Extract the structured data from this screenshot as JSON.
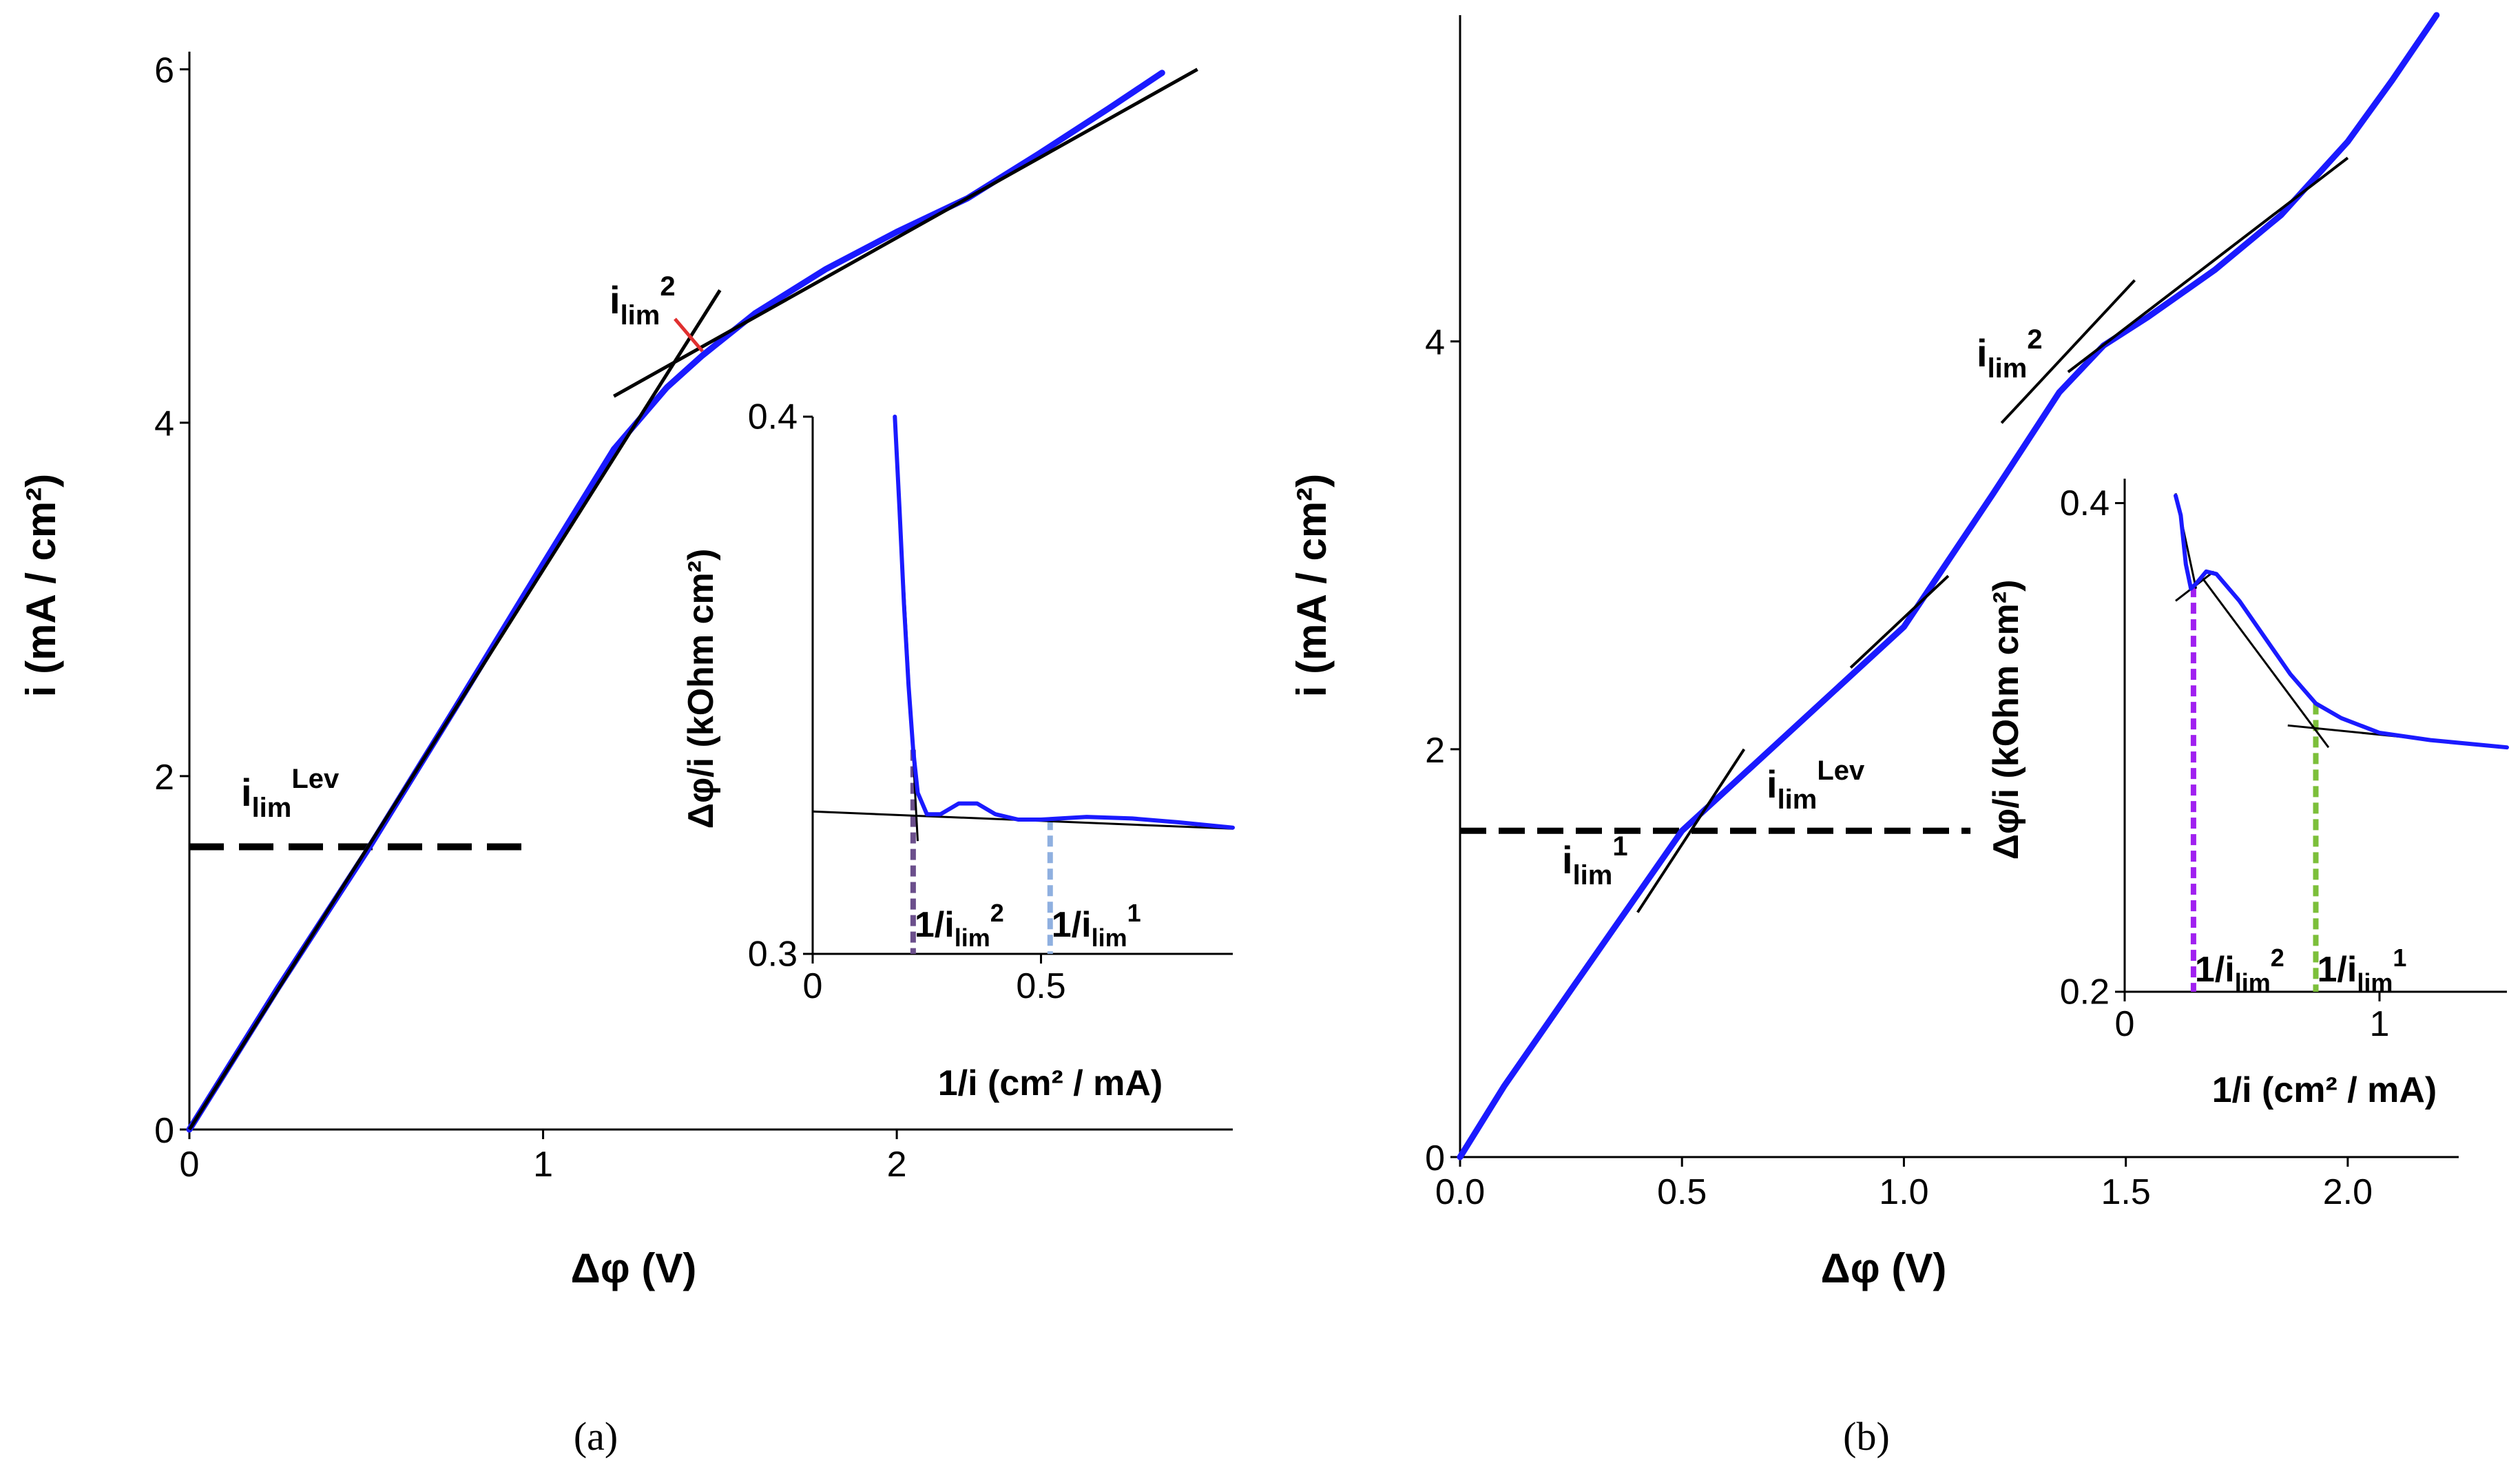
{
  "figure": {
    "caption_a": "(a)",
    "caption_b": "(b)"
  },
  "chart_data": [
    {
      "id": "panel-a-main",
      "type": "line",
      "xlabel": "Δφ (V)",
      "ylabel": "i (mA / cm²)",
      "xlim": [
        0,
        2.95
      ],
      "ylim": [
        0,
        6.1
      ],
      "xticks": [
        "0",
        "1",
        "2"
      ],
      "yticks": [
        "0",
        "2",
        "4",
        "6"
      ],
      "series": [
        {
          "name": "measured",
          "color": "#1a1aff",
          "x": [
            0,
            0.25,
            0.5,
            0.75,
            1.0,
            1.2,
            1.35,
            1.45,
            1.6,
            1.8,
            2.0,
            2.2,
            2.4,
            2.6,
            2.75
          ],
          "y": [
            0,
            0.8,
            1.57,
            2.38,
            3.2,
            3.85,
            4.2,
            4.38,
            4.62,
            4.87,
            5.08,
            5.27,
            5.52,
            5.78,
            5.98
          ]
        }
      ],
      "fit_lines": [
        {
          "x": [
            0,
            1.5
          ],
          "y": [
            0,
            4.75
          ]
        },
        {
          "x": [
            1.2,
            2.85
          ],
          "y": [
            4.15,
            6.0
          ]
        }
      ],
      "limit_lines": [
        {
          "y": 1.6,
          "x": [
            0,
            0.95
          ],
          "dashed": true
        }
      ],
      "annotations": {
        "i_lim_lev": {
          "base": "i",
          "sub": "lim",
          "sup": "Lev"
        },
        "i_lim_2": {
          "base": "i",
          "sub": "lim",
          "sup": "2"
        }
      },
      "inset": {
        "xlabel": "1/i (cm² / mA)",
        "ylabel": "Δφ/i (kOhm cm²)",
        "xlim": [
          0,
          0.92
        ],
        "ylim": [
          0.3,
          0.4
        ],
        "xticks": [
          "0",
          "0.5"
        ],
        "yticks": [
          "0.3",
          "0.4"
        ],
        "series": [
          {
            "name": "measured",
            "color": "#1a1aff",
            "x": [
              0.18,
              0.19,
              0.2,
              0.21,
              0.22,
              0.23,
              0.25,
              0.28,
              0.32,
              0.36,
              0.4,
              0.45,
              0.5,
              0.6,
              0.7,
              0.8,
              0.92
            ],
            "y": [
              0.4,
              0.383,
              0.365,
              0.35,
              0.338,
              0.33,
              0.326,
              0.326,
              0.328,
              0.328,
              0.326,
              0.325,
              0.325,
              0.3255,
              0.3252,
              0.3245,
              0.3235
            ]
          }
        ],
        "fit_lines": [
          {
            "x": [
              0.18,
              0.23
            ],
            "y": [
              0.4,
              0.321
            ]
          },
          {
            "x": [
              0.0,
              0.92
            ],
            "y": [
              0.3265,
              0.3233
            ]
          }
        ],
        "markers": [
          {
            "x": 0.22,
            "color": "#6b4f8c",
            "label": {
              "pre": "1/i",
              "sub": "lim",
              "sup": "2"
            }
          },
          {
            "x": 0.52,
            "color": "#8fb0e0",
            "label": {
              "pre": "1/i",
              "sub": "lim",
              "sup": "1"
            }
          }
        ]
      }
    },
    {
      "id": "panel-b-main",
      "type": "line",
      "xlabel": "Δφ (V)",
      "ylabel": "i (mA / cm²)",
      "xlim": [
        0,
        2.25
      ],
      "ylim": [
        0,
        5.6
      ],
      "xticks": [
        "0.0",
        "0.5",
        "1.0",
        "1.5",
        "2.0"
      ],
      "yticks": [
        "0",
        "2",
        "4"
      ],
      "series": [
        {
          "name": "measured",
          "color": "#1a1aff",
          "x": [
            0,
            0.1,
            0.25,
            0.5,
            0.75,
            1.0,
            1.2,
            1.35,
            1.45,
            1.55,
            1.7,
            1.85,
            2.0,
            2.1,
            2.2
          ],
          "y": [
            0,
            0.35,
            0.82,
            1.6,
            2.1,
            2.6,
            3.25,
            3.75,
            3.98,
            4.12,
            4.35,
            4.62,
            4.98,
            5.28,
            5.6
          ]
        }
      ],
      "fit_lines": [
        {
          "x": [
            0.4,
            0.64
          ],
          "y": [
            1.2,
            2.0
          ]
        },
        {
          "x": [
            0.88,
            1.1
          ],
          "y": [
            2.4,
            2.85
          ]
        },
        {
          "x": [
            1.22,
            1.52
          ],
          "y": [
            3.6,
            4.3
          ]
        },
        {
          "x": [
            1.37,
            2.0
          ],
          "y": [
            3.85,
            4.9
          ]
        }
      ],
      "limit_lines": [
        {
          "y": 1.6,
          "x": [
            0,
            1.15
          ],
          "dashed": true
        }
      ],
      "annotations": {
        "i_lim_1": {
          "base": "i",
          "sub": "lim",
          "sup": "1"
        },
        "i_lim_lev": {
          "base": "i",
          "sub": "lim",
          "sup": "Lev"
        },
        "i_lim_2": {
          "base": "i",
          "sub": "lim",
          "sup": "2"
        }
      },
      "inset": {
        "xlabel": "1/i (cm² / mA)",
        "ylabel": "Δφ/i (kOhm cm²)",
        "xlim": [
          0,
          1.5
        ],
        "ylim": [
          0.2,
          0.41
        ],
        "xticks": [
          "0",
          "1"
        ],
        "yticks": [
          "0.2",
          "0.4"
        ],
        "series": [
          {
            "name": "measured",
            "color": "#1a1aff",
            "x": [
              0.2,
              0.22,
              0.24,
              0.26,
              0.28,
              0.32,
              0.36,
              0.45,
              0.55,
              0.65,
              0.75,
              0.85,
              1.0,
              1.2,
              1.5
            ],
            "y": [
              0.403,
              0.395,
              0.375,
              0.365,
              0.367,
              0.372,
              0.371,
              0.36,
              0.345,
              0.33,
              0.318,
              0.312,
              0.306,
              0.303,
              0.3
            ]
          }
        ],
        "fit_lines": [
          {
            "x": [
              0.2,
              0.28
            ],
            "y": [
              0.404,
              0.365
            ]
          },
          {
            "x": [
              0.2,
              0.35
            ],
            "y": [
              0.36,
              0.372
            ]
          },
          {
            "x": [
              0.3,
              0.8
            ],
            "y": [
              0.37,
              0.3
            ]
          },
          {
            "x": [
              0.64,
              1.5
            ],
            "y": [
              0.309,
              0.3
            ]
          }
        ],
        "markers": [
          {
            "x": 0.27,
            "color": "#a020f0",
            "label": {
              "pre": "1/i",
              "sub": "lim",
              "sup": "2"
            }
          },
          {
            "x": 0.75,
            "color": "#7cbf3a",
            "label": {
              "pre": "1/i",
              "sub": "lim",
              "sup": "1"
            }
          }
        ]
      }
    }
  ]
}
